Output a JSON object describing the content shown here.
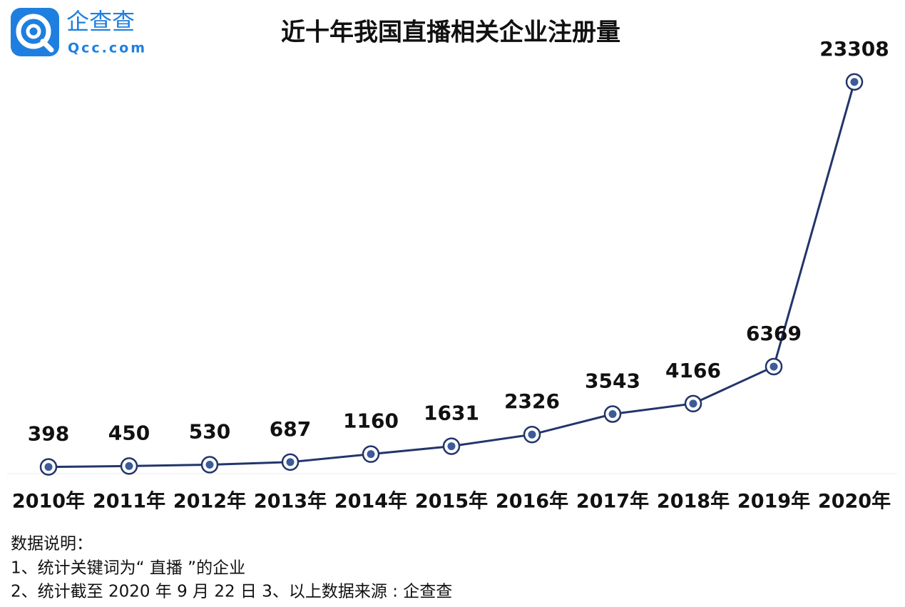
{
  "logo": {
    "name": "企查查",
    "domain": "Qcc.com"
  },
  "chart_data": {
    "type": "line",
    "title": "近十年我国直播相关企业注册量",
    "categories": [
      "2010年",
      "2011年",
      "2012年",
      "2013年",
      "2014年",
      "2015年",
      "2016年",
      "2017年",
      "2018年",
      "2019年",
      "2020年"
    ],
    "values": [
      398,
      450,
      530,
      687,
      1160,
      1631,
      2326,
      3543,
      4166,
      6369,
      23308
    ],
    "color": "#22356b",
    "ylim": [
      0,
      25000
    ]
  },
  "notes": [
    "数据说明：",
    "1、统计关键词为“ 直播 ”的企业",
    "2、统计截至 2020 年 9 月 22 日 3、以上数据来源 : 企查查"
  ]
}
